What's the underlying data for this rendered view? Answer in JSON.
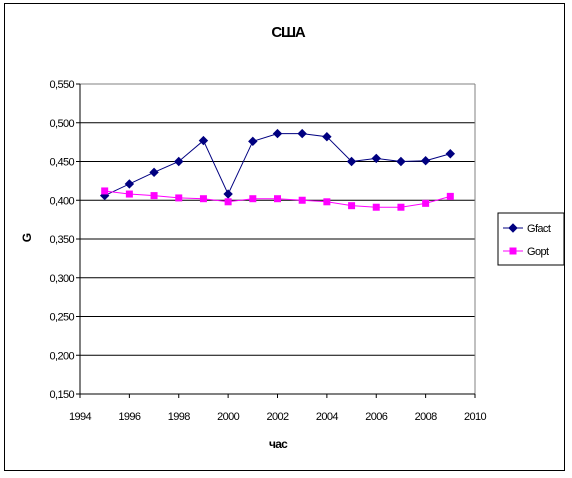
{
  "chart_data": {
    "type": "line",
    "title": "США",
    "xlabel": "час",
    "ylabel": "G",
    "xlim": [
      1994,
      2010
    ],
    "ylim": [
      0.15,
      0.55
    ],
    "x_ticks": [
      "1994",
      "1996",
      "1998",
      "2000",
      "2002",
      "2004",
      "2006",
      "2008",
      "2010"
    ],
    "y_ticks": [
      "0,150",
      "0,200",
      "0,250",
      "0,300",
      "0,350",
      "0,400",
      "0,450",
      "0,500",
      "0,550"
    ],
    "grid": "horizontal",
    "legend_position": "right",
    "x": [
      1995,
      1996,
      1997,
      1998,
      1999,
      2000,
      2001,
      2002,
      2003,
      2004,
      2005,
      2006,
      2007,
      2008,
      2009
    ],
    "series": [
      {
        "name": "Gfact",
        "color": "#000080",
        "marker": "diamond",
        "values": [
          0.406,
          0.421,
          0.436,
          0.45,
          0.477,
          0.408,
          0.476,
          0.486,
          0.486,
          0.482,
          0.45,
          0.454,
          0.45,
          0.451,
          0.46
        ]
      },
      {
        "name": "Gopt",
        "color": "#ff00ff",
        "marker": "square",
        "values": [
          0.412,
          0.408,
          0.406,
          0.403,
          0.402,
          0.398,
          0.402,
          0.402,
          0.4,
          0.398,
          0.393,
          0.391,
          0.391,
          0.396,
          0.405
        ]
      }
    ]
  }
}
